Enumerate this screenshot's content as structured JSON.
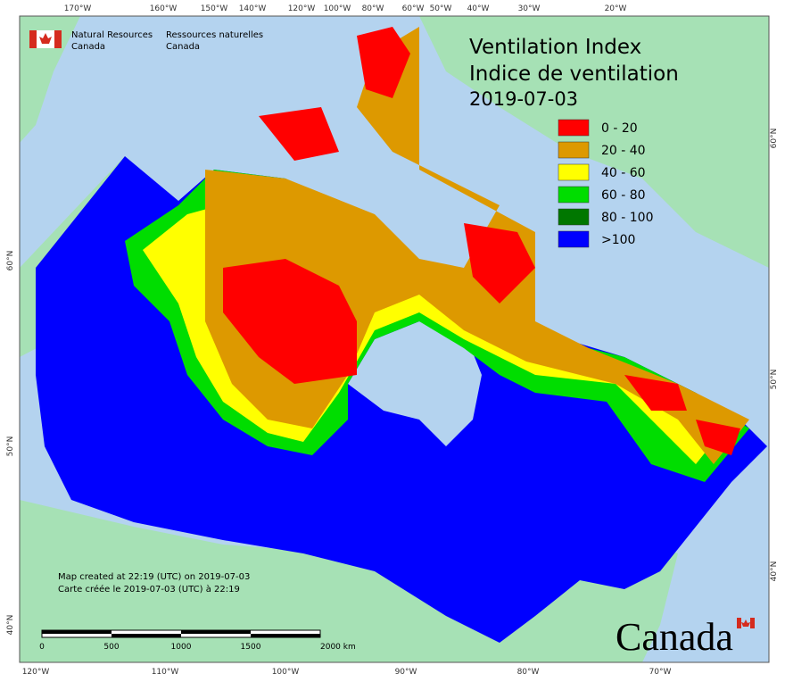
{
  "header": {
    "agency_en": [
      "Natural Resources",
      "Canada"
    ],
    "agency_fr": [
      "Ressources naturelles",
      "Canada"
    ]
  },
  "title": [
    "Ventilation Index",
    "Indice de ventilation",
    "2019-07-03"
  ],
  "legend": [
    {
      "label": "0 - 20",
      "color": "#ff0000"
    },
    {
      "label": "20 - 40",
      "color": "#dd9900"
    },
    {
      "label": "40 - 60",
      "color": "#ffff00"
    },
    {
      "label": "60 - 80",
      "color": "#00dd00"
    },
    {
      "label": "80 - 100",
      "color": "#007700"
    },
    {
      "label": ">100",
      "color": "#0000ff"
    }
  ],
  "graticule": {
    "top": [
      "170°W",
      "160°W",
      "150°W",
      "140°W",
      "120°W",
      "100°W",
      "80°W",
      "60°W",
      "50°W",
      "40°W",
      "30°W",
      "20°W"
    ],
    "bottom": [
      "120°W",
      "110°W",
      "100°W",
      "90°W",
      "80°W",
      "70°W"
    ],
    "left": [
      "60°N",
      "50°N",
      "40°N"
    ],
    "right": [
      "60°N",
      "50°N",
      "40°N"
    ]
  },
  "notes": [
    "Map created at 22:19 (UTC) on 2019-07-03",
    "Carte créée le 2019-07-03 (UTC) à 22:19"
  ],
  "scale_bar": [
    "0",
    "500",
    "1000",
    "1500",
    "2000 km"
  ],
  "wordmark": "Canada"
}
